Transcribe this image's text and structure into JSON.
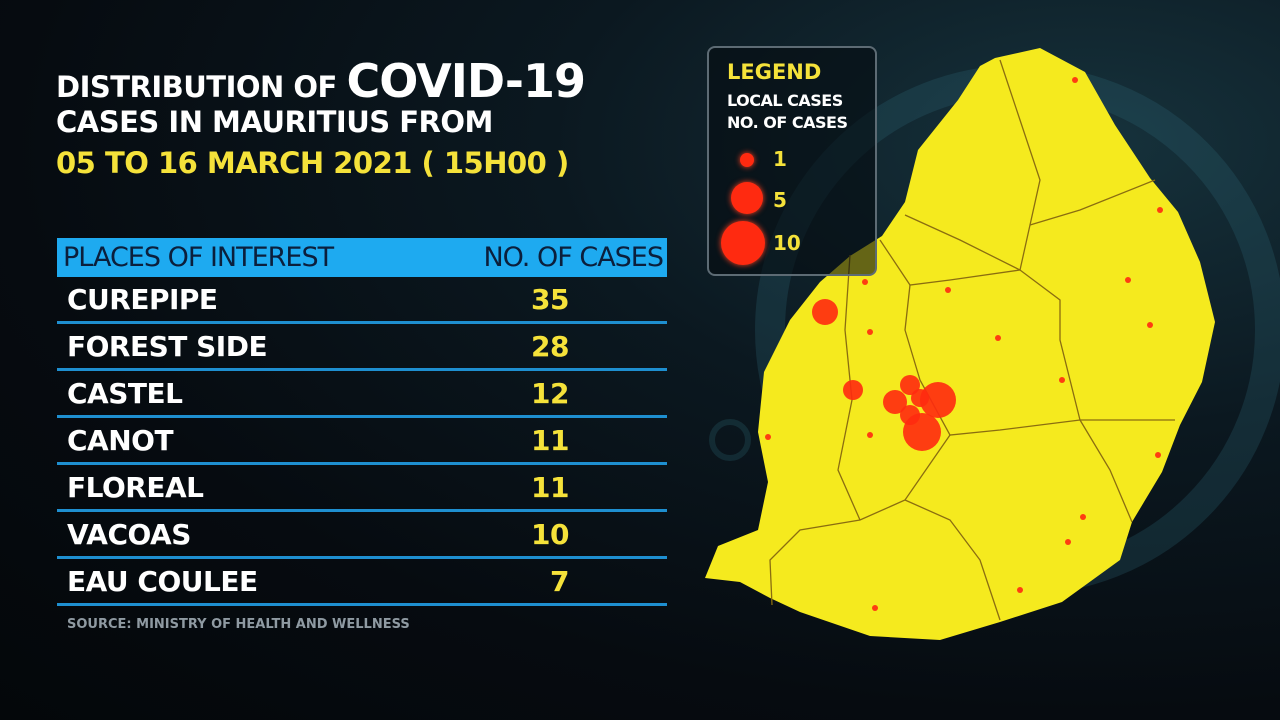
{
  "title": {
    "line1_prefix": "DISTRIBUTION OF",
    "line1_highlight": "COVID-19",
    "line2": "CASES IN MAURITIUS FROM",
    "line3": "05 TO 16 MARCH 2021 ( 15H00 )"
  },
  "table": {
    "headers": [
      "PLACES OF INTEREST",
      "NO. OF CASES"
    ],
    "rows": [
      {
        "place": "CUREPIPE",
        "cases": "35"
      },
      {
        "place": "FOREST SIDE",
        "cases": "28"
      },
      {
        "place": "CASTEL",
        "cases": "12"
      },
      {
        "place": "CANOT",
        "cases": "11"
      },
      {
        "place": "FLOREAL",
        "cases": "11"
      },
      {
        "place": "VACOAS",
        "cases": "10"
      },
      {
        "place": "EAU COULEE",
        "cases": "7"
      }
    ]
  },
  "source": "SOURCE: MINISTRY OF HEALTH AND WELLNESS",
  "legend": {
    "title": "LEGEND",
    "subtitle1": "LOCAL CASES",
    "subtitle2": "NO. OF CASES",
    "items": [
      {
        "value": "1"
      },
      {
        "value": "5"
      },
      {
        "value": "10"
      }
    ]
  },
  "colors": {
    "land": "#f5ea1e",
    "dot": "#ff2a10",
    "header": "#1eaaf0",
    "accent": "#f5e23a"
  }
}
